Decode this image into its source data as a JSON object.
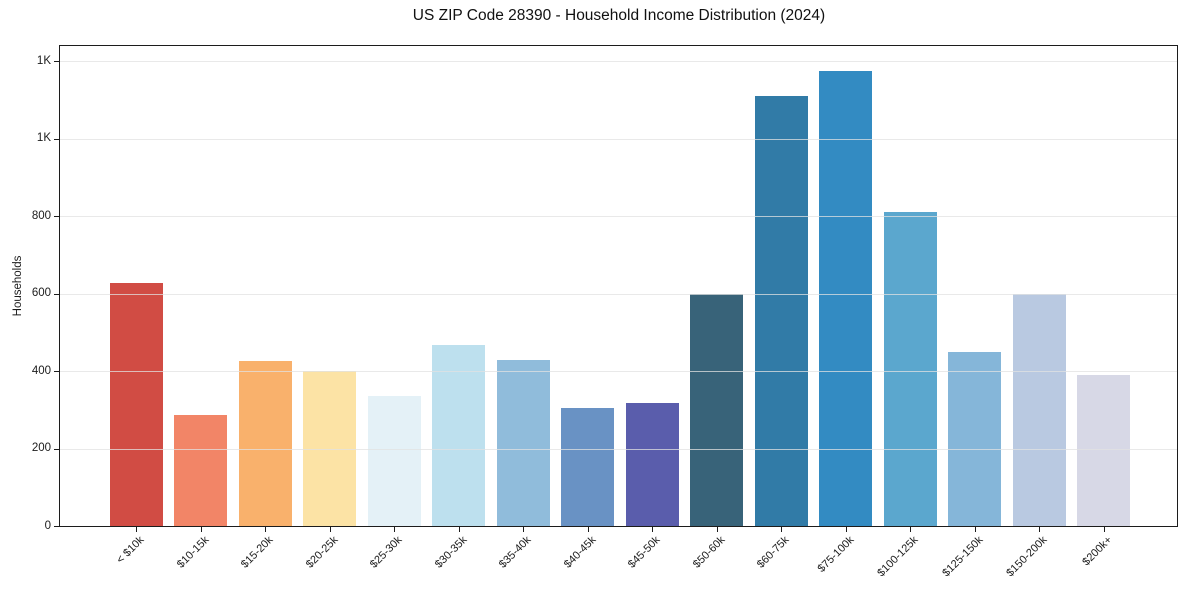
{
  "title": "US ZIP Code 28390 - Household Income Distribution (2024)",
  "chart_data": {
    "type": "bar",
    "title": "US ZIP Code 28390 - Household Income Distribution (2024)",
    "xlabel": "",
    "ylabel": "Households",
    "categories": [
      "< $10k",
      "$10-15k",
      "$15-20k",
      "$20-25k",
      "$25-30k",
      "$30-35k",
      "$35-40k",
      "$40-45k",
      "$45-50k",
      "$50-60k",
      "$60-75k",
      "$75-100k",
      "$100-125k",
      "$125-150k",
      "$150-200k",
      "$200k+"
    ],
    "values": [
      628,
      288,
      425,
      400,
      337,
      467,
      430,
      305,
      318,
      600,
      1110,
      1175,
      810,
      450,
      600,
      390
    ],
    "bar_colors": [
      "#d14c44",
      "#f28567",
      "#f9b16c",
      "#fce3a5",
      "#e4f1f7",
      "#bde0ee",
      "#90bcdb",
      "#6992c4",
      "#5a5dac",
      "#386379",
      "#317ba7",
      "#338bc2",
      "#5ba7ce",
      "#85b6d9",
      "#b9c9e1",
      "#d7d8e6"
    ],
    "ylim": [
      0,
      1240
    ],
    "yticks": [
      {
        "value": 0,
        "label": "0"
      },
      {
        "value": 200,
        "label": "200"
      },
      {
        "value": 400,
        "label": "400"
      },
      {
        "value": 600,
        "label": "600"
      },
      {
        "value": 800,
        "label": "800"
      },
      {
        "value": 1000,
        "label": "1K"
      },
      {
        "value": 1200,
        "label": "1K"
      }
    ],
    "grid": "horizontal",
    "legend_position": "none",
    "frame_color": "#1c1c1c",
    "gridline_color": "#e1e1e1",
    "background_color": "#ffffff"
  }
}
